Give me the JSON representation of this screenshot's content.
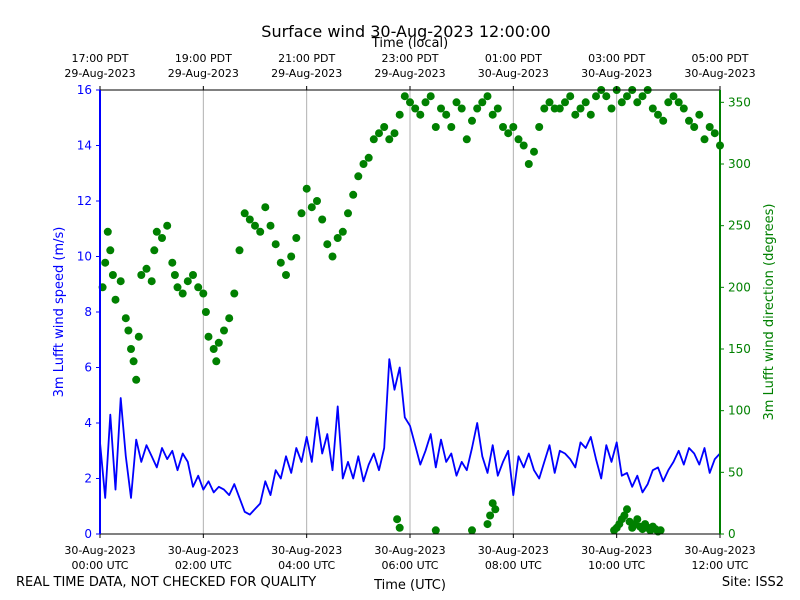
{
  "chart_data": {
    "type": "line",
    "title": "Surface wind 30-Aug-2023 12:00:00",
    "top_axis_label": "Time (local)",
    "xlabel": "Time (UTC)",
    "ylabel_left": "3m Lufft wind speed (m/s)",
    "ylabel_right": "3m Lufft wind direction (degrees)",
    "xlim_hours": [
      0,
      12
    ],
    "ylim_left": [
      0,
      16
    ],
    "ylim_right": [
      0,
      360
    ],
    "left_ticks": [
      0,
      2,
      4,
      6,
      8,
      10,
      12,
      14,
      16
    ],
    "right_ticks": [
      0,
      50,
      100,
      150,
      200,
      250,
      300,
      350
    ],
    "grid": "vertical only",
    "colors": {
      "speed": "#0000ff",
      "direction": "#008000",
      "grid": "#b0b0b0"
    },
    "bottom_ticks": [
      {
        "hour": 0,
        "line1": "30-Aug-2023",
        "line2": "00:00 UTC"
      },
      {
        "hour": 2,
        "line1": "30-Aug-2023",
        "line2": "02:00 UTC"
      },
      {
        "hour": 4,
        "line1": "30-Aug-2023",
        "line2": "04:00 UTC"
      },
      {
        "hour": 6,
        "line1": "30-Aug-2023",
        "line2": "06:00 UTC"
      },
      {
        "hour": 8,
        "line1": "30-Aug-2023",
        "line2": "08:00 UTC"
      },
      {
        "hour": 10,
        "line1": "30-Aug-2023",
        "line2": "10:00 UTC"
      },
      {
        "hour": 12,
        "line1": "30-Aug-2023",
        "line2": "12:00 UTC"
      }
    ],
    "top_ticks": [
      {
        "hour": 0,
        "line1": "17:00 PDT",
        "line2": "29-Aug-2023"
      },
      {
        "hour": 2,
        "line1": "19:00 PDT",
        "line2": "29-Aug-2023"
      },
      {
        "hour": 4,
        "line1": "21:00 PDT",
        "line2": "29-Aug-2023"
      },
      {
        "hour": 6,
        "line1": "23:00 PDT",
        "line2": "29-Aug-2023"
      },
      {
        "hour": 8,
        "line1": "01:00 PDT",
        "line2": "30-Aug-2023"
      },
      {
        "hour": 10,
        "line1": "03:00 PDT",
        "line2": "30-Aug-2023"
      },
      {
        "hour": 12,
        "line1": "05:00 PDT",
        "line2": "30-Aug-2023"
      }
    ],
    "series": [
      {
        "axis": "left",
        "x_hours": [
          0,
          0.1,
          0.2,
          0.3,
          0.4,
          0.5,
          0.6,
          0.7,
          0.8,
          0.9,
          1.0,
          1.1,
          1.2,
          1.3,
          1.4,
          1.5,
          1.6,
          1.7,
          1.8,
          1.9,
          2.0,
          2.1,
          2.2,
          2.3,
          2.4,
          2.5,
          2.6,
          2.7,
          2.8,
          2.9,
          3.0,
          3.1,
          3.2,
          3.3,
          3.4,
          3.5,
          3.6,
          3.7,
          3.8,
          3.9,
          4.0,
          4.1,
          4.2,
          4.3,
          4.4,
          4.5,
          4.6,
          4.7,
          4.8,
          4.9,
          5.0,
          5.1,
          5.2,
          5.3,
          5.4,
          5.5,
          5.6,
          5.7,
          5.8,
          5.9,
          6.0,
          6.1,
          6.2,
          6.3,
          6.4,
          6.5,
          6.6,
          6.7,
          6.8,
          6.9,
          7.0,
          7.1,
          7.2,
          7.3,
          7.4,
          7.5,
          7.6,
          7.7,
          7.8,
          7.9,
          8.0,
          8.1,
          8.2,
          8.3,
          8.4,
          8.5,
          8.6,
          8.7,
          8.8,
          8.9,
          9.0,
          9.1,
          9.2,
          9.3,
          9.4,
          9.5,
          9.6,
          9.7,
          9.8,
          9.9,
          10.0,
          10.1,
          10.2,
          10.3,
          10.4,
          10.5,
          10.6,
          10.7,
          10.8,
          10.9,
          11.0,
          11.1,
          11.2,
          11.3,
          11.4,
          11.5,
          11.6,
          11.7,
          11.8,
          11.9,
          12.0
        ],
        "values": [
          3.3,
          1.3,
          4.3,
          1.6,
          4.9,
          2.8,
          1.3,
          3.4,
          2.6,
          3.2,
          2.8,
          2.4,
          3.1,
          2.7,
          3.0,
          2.3,
          2.9,
          2.6,
          1.7,
          2.1,
          1.6,
          1.9,
          1.5,
          1.7,
          1.6,
          1.4,
          1.8,
          1.3,
          0.8,
          0.7,
          0.9,
          1.1,
          1.9,
          1.4,
          2.3,
          2.0,
          2.8,
          2.2,
          3.1,
          2.6,
          3.5,
          2.6,
          4.2,
          2.9,
          3.6,
          2.3,
          4.6,
          2.0,
          2.6,
          2.0,
          2.8,
          1.9,
          2.5,
          2.9,
          2.3,
          3.1,
          6.3,
          5.2,
          6.0,
          4.2,
          3.9,
          3.2,
          2.5,
          3.0,
          3.6,
          2.4,
          3.4,
          2.6,
          2.9,
          2.1,
          2.6,
          2.3,
          3.1,
          4.0,
          2.8,
          2.2,
          3.2,
          2.1,
          2.6,
          3.0,
          1.4,
          2.8,
          2.4,
          2.9,
          2.3,
          2.0,
          2.6,
          3.2,
          2.2,
          3.0,
          2.9,
          2.7,
          2.4,
          3.3,
          3.1,
          3.5,
          2.7,
          2.0,
          3.2,
          2.6,
          3.3,
          2.1,
          2.2,
          1.7,
          2.1,
          1.5,
          1.8,
          2.3,
          2.4,
          1.9,
          2.3,
          2.6,
          3.0,
          2.5,
          3.1,
          2.9,
          2.5,
          3.1,
          2.2,
          2.7,
          2.9
        ]
      },
      {
        "axis": "right",
        "x_hours": [
          0.05,
          0.1,
          0.15,
          0.2,
          0.25,
          0.3,
          0.4,
          0.5,
          0.55,
          0.6,
          0.65,
          0.7,
          0.75,
          0.8,
          0.9,
          1.0,
          1.05,
          1.1,
          1.2,
          1.3,
          1.4,
          1.45,
          1.5,
          1.6,
          1.7,
          1.8,
          1.9,
          2.0,
          2.05,
          2.1,
          2.2,
          2.25,
          2.3,
          2.4,
          2.5,
          2.6,
          2.7,
          2.8,
          2.9,
          3.0,
          3.1,
          3.2,
          3.3,
          3.4,
          3.5,
          3.6,
          3.7,
          3.8,
          3.9,
          4.0,
          4.1,
          4.2,
          4.3,
          4.4,
          4.5,
          4.6,
          4.7,
          4.8,
          4.9,
          5.0,
          5.1,
          5.2,
          5.3,
          5.4,
          5.5,
          5.6,
          5.7,
          5.8,
          5.9,
          6.0,
          6.1,
          6.2,
          6.3,
          6.4,
          6.5,
          6.6,
          6.7,
          6.8,
          6.9,
          7.0,
          7.1,
          7.2,
          7.3,
          7.4,
          7.5,
          7.6,
          7.7,
          7.8,
          7.9,
          8.0,
          8.1,
          8.2,
          8.3,
          8.4,
          8.5,
          8.6,
          8.7,
          8.8,
          8.9,
          9.0,
          9.1,
          9.2,
          9.3,
          9.4,
          9.5,
          9.6,
          9.7,
          9.8,
          9.9,
          10.0,
          10.1,
          10.2,
          10.3,
          10.4,
          10.5,
          10.6,
          10.7,
          10.8,
          10.9,
          11.0,
          11.1,
          11.2,
          11.3,
          11.4,
          11.5,
          11.6,
          11.7,
          11.8,
          11.9,
          12.0,
          5.75,
          5.8,
          6.5,
          7.2,
          7.5,
          7.55,
          7.6,
          7.65,
          9.95,
          10.0,
          10.05,
          10.1,
          10.15,
          10.2,
          10.25,
          10.3,
          10.35,
          10.4,
          10.45,
          10.5,
          10.55,
          10.6,
          10.65,
          10.7,
          10.75,
          10.8,
          10.85
        ],
        "values": [
          200,
          220,
          245,
          230,
          210,
          190,
          205,
          175,
          165,
          150,
          140,
          125,
          160,
          210,
          215,
          205,
          230,
          245,
          240,
          250,
          220,
          210,
          200,
          195,
          205,
          210,
          200,
          195,
          180,
          160,
          150,
          140,
          155,
          165,
          175,
          195,
          230,
          260,
          255,
          250,
          245,
          265,
          250,
          235,
          220,
          210,
          225,
          240,
          260,
          280,
          265,
          270,
          255,
          235,
          225,
          240,
          245,
          260,
          275,
          290,
          300,
          305,
          320,
          325,
          330,
          320,
          325,
          340,
          355,
          350,
          345,
          340,
          350,
          355,
          330,
          345,
          340,
          330,
          350,
          345,
          320,
          335,
          345,
          350,
          355,
          340,
          345,
          330,
          325,
          330,
          320,
          315,
          300,
          310,
          330,
          345,
          350,
          345,
          345,
          350,
          355,
          340,
          345,
          350,
          340,
          355,
          360,
          355,
          345,
          360,
          350,
          355,
          365,
          350,
          355,
          360,
          345,
          340,
          335,
          350,
          355,
          350,
          345,
          335,
          330,
          340,
          320,
          330,
          325,
          315,
          12,
          5,
          3,
          3,
          8,
          15,
          25,
          20,
          3,
          5,
          8,
          12,
          15,
          20,
          10,
          5,
          8,
          12,
          6,
          4,
          8,
          5,
          3,
          6,
          4,
          2,
          3
        ]
      }
    ]
  },
  "footer": {
    "left_note": "REAL TIME DATA, NOT CHECKED FOR QUALITY",
    "site": "Site: ISS2"
  }
}
